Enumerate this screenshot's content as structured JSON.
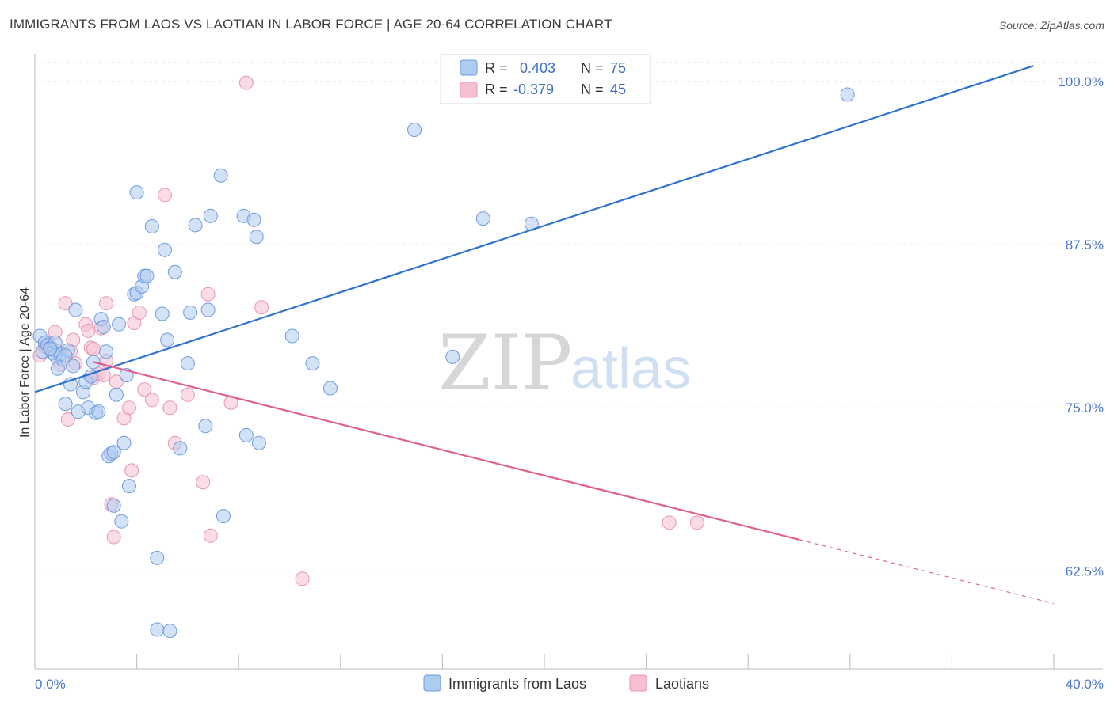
{
  "title": "IMMIGRANTS FROM LAOS VS LAOTIAN IN LABOR FORCE | AGE 20-64 CORRELATION CHART",
  "source": "Source: ZipAtlas.com",
  "watermark": {
    "zip": "ZIP",
    "atlas": "atlas"
  },
  "colors": {
    "blue_fill": "#aecbf0",
    "blue_stroke": "#6d9be0",
    "blue_line": "#2f72d0",
    "pink_fill": "#f6c0d2",
    "pink_stroke": "#e896b2",
    "pink_line": "#e0608e",
    "tick_text": "#4a78c8",
    "grid": "#e0e0e0"
  },
  "legend": {
    "rows": [
      {
        "r_label": "R =",
        "r_value": "0.403",
        "n_label": "N =",
        "n_value": "75"
      },
      {
        "r_label": "R =",
        "r_value": "-0.379",
        "n_label": "N =",
        "n_value": "45"
      }
    ]
  },
  "chart_data": {
    "type": "scatter",
    "title": "IMMIGRANTS FROM LAOS VS LAOTIAN IN LABOR FORCE | AGE 20-64 CORRELATION CHART",
    "xlabel": "",
    "ylabel": "In Labor Force | Age 20-64",
    "xlim": [
      0,
      40
    ],
    "ylim": [
      55,
      102
    ],
    "x_tick_labels": [
      {
        "value": 0,
        "label": "0.0%"
      },
      {
        "value": 40,
        "label": "40.0%"
      }
    ],
    "y_tick_labels": [
      {
        "value": 100,
        "label": "100.0%"
      },
      {
        "value": 87.5,
        "label": "87.5%"
      },
      {
        "value": 75,
        "label": "75.0%"
      },
      {
        "value": 62.5,
        "label": "62.5%"
      }
    ],
    "grid": true,
    "legend_placement": "top-center",
    "series": [
      {
        "name": "Immigrants from Laos",
        "color": "#aecbf0",
        "trend": {
          "x": [
            0,
            39.2
          ],
          "y": [
            76.2,
            101.2
          ]
        },
        "points": [
          [
            0.2,
            80.5
          ],
          [
            0.3,
            79.3
          ],
          [
            0.4,
            80.0
          ],
          [
            0.5,
            79.8
          ],
          [
            0.6,
            79.6
          ],
          [
            0.7,
            79.2
          ],
          [
            0.8,
            80.0
          ],
          [
            0.8,
            79.0
          ],
          [
            0.9,
            78.0
          ],
          [
            1.0,
            79.1
          ],
          [
            1.1,
            78.7
          ],
          [
            1.2,
            75.3
          ],
          [
            1.3,
            79.4
          ],
          [
            1.4,
            76.8
          ],
          [
            1.5,
            78.2
          ],
          [
            1.6,
            82.5
          ],
          [
            1.7,
            74.7
          ],
          [
            1.9,
            76.2
          ],
          [
            2.0,
            77.0
          ],
          [
            2.1,
            75.0
          ],
          [
            2.2,
            77.4
          ],
          [
            2.3,
            78.5
          ],
          [
            2.4,
            74.6
          ],
          [
            2.5,
            74.7
          ],
          [
            2.6,
            81.8
          ],
          [
            2.7,
            81.2
          ],
          [
            2.8,
            79.3
          ],
          [
            2.9,
            71.3
          ],
          [
            3.0,
            71.5
          ],
          [
            3.1,
            71.6
          ],
          [
            3.1,
            67.5
          ],
          [
            3.2,
            76.0
          ],
          [
            3.3,
            81.4
          ],
          [
            3.4,
            66.3
          ],
          [
            3.5,
            72.3
          ],
          [
            3.6,
            77.5
          ],
          [
            3.7,
            69.0
          ],
          [
            3.9,
            83.7
          ],
          [
            4.0,
            83.8
          ],
          [
            4.0,
            91.5
          ],
          [
            4.2,
            84.3
          ],
          [
            4.3,
            85.1
          ],
          [
            4.4,
            85.1
          ],
          [
            4.6,
            88.9
          ],
          [
            4.8,
            63.5
          ],
          [
            4.8,
            58.0
          ],
          [
            5.0,
            82.2
          ],
          [
            5.1,
            87.1
          ],
          [
            5.2,
            80.2
          ],
          [
            5.3,
            57.9
          ],
          [
            5.5,
            85.4
          ],
          [
            5.7,
            71.9
          ],
          [
            6.0,
            78.4
          ],
          [
            6.1,
            82.3
          ],
          [
            6.3,
            89.0
          ],
          [
            6.7,
            73.6
          ],
          [
            6.8,
            82.5
          ],
          [
            6.9,
            89.7
          ],
          [
            7.3,
            92.8
          ],
          [
            7.4,
            66.7
          ],
          [
            8.2,
            89.7
          ],
          [
            8.3,
            72.9
          ],
          [
            8.6,
            89.4
          ],
          [
            8.7,
            88.1
          ],
          [
            8.8,
            72.3
          ],
          [
            10.1,
            80.5
          ],
          [
            10.9,
            78.4
          ],
          [
            11.6,
            76.5
          ],
          [
            14.9,
            96.3
          ],
          [
            16.4,
            78.9
          ],
          [
            17.6,
            89.5
          ],
          [
            19.5,
            89.1
          ],
          [
            31.9,
            99.0
          ],
          [
            0.6,
            79.5
          ],
          [
            1.2,
            79.0
          ]
        ]
      },
      {
        "name": "Laotians",
        "color": "#f6c0d2",
        "trend": {
          "x": [
            2.3,
            30.0
          ],
          "y": [
            78.5,
            64.9
          ],
          "dashed_to": {
            "x": 40,
            "y": 60.0
          }
        },
        "points": [
          [
            0.2,
            79.0
          ],
          [
            0.5,
            80.0
          ],
          [
            0.7,
            79.5
          ],
          [
            0.8,
            80.8
          ],
          [
            0.9,
            79.3
          ],
          [
            1.0,
            78.3
          ],
          [
            1.2,
            83.0
          ],
          [
            1.3,
            74.1
          ],
          [
            1.4,
            79.3
          ],
          [
            1.5,
            80.2
          ],
          [
            1.6,
            78.4
          ],
          [
            2.0,
            81.4
          ],
          [
            2.1,
            80.9
          ],
          [
            2.2,
            79.6
          ],
          [
            2.3,
            79.5
          ],
          [
            2.3,
            77.3
          ],
          [
            2.5,
            77.6
          ],
          [
            2.6,
            81.1
          ],
          [
            2.7,
            77.5
          ],
          [
            2.8,
            78.6
          ],
          [
            2.8,
            83.0
          ],
          [
            3.0,
            67.6
          ],
          [
            3.1,
            65.1
          ],
          [
            3.2,
            77.0
          ],
          [
            3.5,
            74.2
          ],
          [
            3.7,
            75.0
          ],
          [
            3.8,
            70.2
          ],
          [
            3.9,
            81.5
          ],
          [
            4.1,
            82.3
          ],
          [
            4.3,
            76.4
          ],
          [
            4.6,
            75.6
          ],
          [
            5.1,
            91.3
          ],
          [
            5.3,
            75.0
          ],
          [
            5.5,
            72.3
          ],
          [
            6.0,
            76.0
          ],
          [
            6.6,
            69.3
          ],
          [
            6.8,
            83.7
          ],
          [
            6.9,
            65.2
          ],
          [
            7.7,
            75.4
          ],
          [
            8.3,
            99.9
          ],
          [
            8.9,
            82.7
          ],
          [
            10.5,
            61.9
          ],
          [
            24.9,
            66.2
          ],
          [
            26.0,
            66.2
          ],
          [
            0.4,
            79.7
          ]
        ]
      }
    ]
  }
}
